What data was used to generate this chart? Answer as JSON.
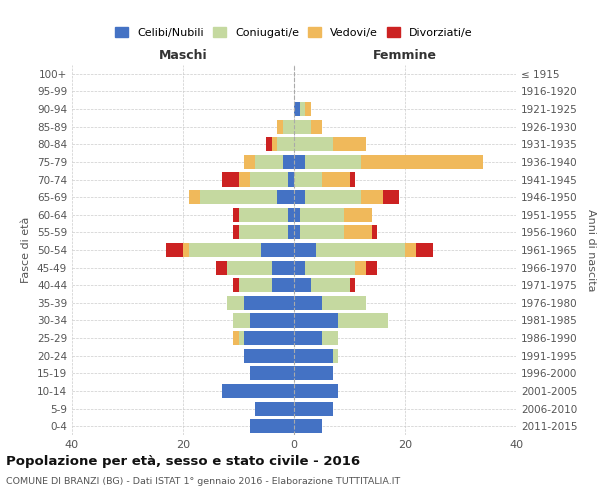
{
  "age_groups": [
    "0-4",
    "5-9",
    "10-14",
    "15-19",
    "20-24",
    "25-29",
    "30-34",
    "35-39",
    "40-44",
    "45-49",
    "50-54",
    "55-59",
    "60-64",
    "65-69",
    "70-74",
    "75-79",
    "80-84",
    "85-89",
    "90-94",
    "95-99",
    "100+"
  ],
  "birth_years": [
    "2011-2015",
    "2006-2010",
    "2001-2005",
    "1996-2000",
    "1991-1995",
    "1986-1990",
    "1981-1985",
    "1976-1980",
    "1971-1975",
    "1966-1970",
    "1961-1965",
    "1956-1960",
    "1951-1955",
    "1946-1950",
    "1941-1945",
    "1936-1940",
    "1931-1935",
    "1926-1930",
    "1921-1925",
    "1916-1920",
    "≤ 1915"
  ],
  "colors": {
    "celibi": "#4472c4",
    "coniugati": "#c5d9a0",
    "vedovi": "#f0b95b",
    "divorziati": "#cc2222"
  },
  "male": {
    "celibi": [
      8,
      7,
      13,
      8,
      9,
      9,
      8,
      9,
      4,
      4,
      6,
      1,
      1,
      3,
      1,
      2,
      0,
      0,
      0,
      0,
      0
    ],
    "coniugati": [
      0,
      0,
      0,
      0,
      0,
      1,
      3,
      3,
      6,
      8,
      13,
      9,
      9,
      14,
      7,
      5,
      3,
      2,
      0,
      0,
      0
    ],
    "vedovi": [
      0,
      0,
      0,
      0,
      0,
      1,
      0,
      0,
      0,
      0,
      1,
      0,
      0,
      2,
      2,
      2,
      1,
      1,
      0,
      0,
      0
    ],
    "divorziati": [
      0,
      0,
      0,
      0,
      0,
      0,
      0,
      0,
      1,
      2,
      3,
      1,
      1,
      0,
      3,
      0,
      1,
      0,
      0,
      0,
      0
    ]
  },
  "female": {
    "celibi": [
      5,
      7,
      8,
      7,
      7,
      5,
      8,
      5,
      3,
      2,
      4,
      1,
      1,
      2,
      0,
      2,
      0,
      0,
      1,
      0,
      0
    ],
    "coniugati": [
      0,
      0,
      0,
      0,
      1,
      3,
      9,
      8,
      7,
      9,
      16,
      8,
      8,
      10,
      5,
      10,
      7,
      3,
      1,
      0,
      0
    ],
    "vedovi": [
      0,
      0,
      0,
      0,
      0,
      0,
      0,
      0,
      0,
      2,
      2,
      5,
      5,
      4,
      5,
      22,
      6,
      2,
      1,
      0,
      0
    ],
    "divorziati": [
      0,
      0,
      0,
      0,
      0,
      0,
      0,
      0,
      1,
      2,
      3,
      1,
      0,
      3,
      1,
      0,
      0,
      0,
      0,
      0,
      0
    ]
  },
  "title": "Popolazione per età, sesso e stato civile - 2016",
  "subtitle": "COMUNE DI BRANZI (BG) - Dati ISTAT 1° gennaio 2016 - Elaborazione TUTTITALIA.IT",
  "xlabel_left": "Maschi",
  "xlabel_right": "Femmine",
  "ylabel_left": "Fasce di età",
  "ylabel_right": "Anni di nascita",
  "legend_labels": [
    "Celibi/Nubili",
    "Coniugati/e",
    "Vedovi/e",
    "Divorziati/e"
  ],
  "xlim": 40,
  "background_color": "#ffffff"
}
